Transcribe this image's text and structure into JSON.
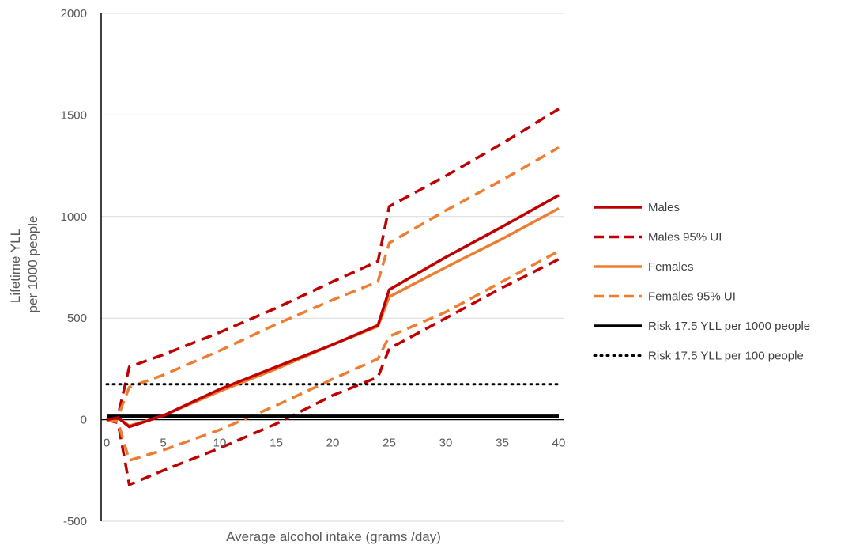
{
  "chart_data": {
    "type": "line",
    "xlabel": "Average alcohol intake (grams /day)",
    "ylabel_lines": [
      "Lifetime YLL",
      "per 1000 people"
    ],
    "xlim": [
      0,
      40
    ],
    "ylim": [
      -500,
      2000
    ],
    "x_ticks": [
      0,
      5,
      10,
      15,
      20,
      25,
      30,
      35,
      40
    ],
    "y_ticks": [
      -500,
      0,
      500,
      1000,
      1500,
      2000
    ],
    "grid": "horizontal",
    "legend_position": "right",
    "series": [
      {
        "name": "Males",
        "color": "#C00000",
        "dash": "solid",
        "x": [
          0,
          1,
          2,
          5,
          10,
          15,
          20,
          24,
          25,
          30,
          35,
          40
        ],
        "y": [
          0,
          10,
          -35,
          20,
          150,
          260,
          370,
          465,
          640,
          800,
          950,
          1105
        ]
      },
      {
        "name": "Males 95% UI",
        "color": "#C00000",
        "dash": "dashed",
        "x": [
          0,
          1,
          2,
          5,
          10,
          15,
          20,
          24,
          25,
          30,
          35,
          40
        ],
        "y": [
          0,
          20,
          260,
          320,
          430,
          550,
          680,
          780,
          1050,
          1200,
          1360,
          1530
        ]
      },
      {
        "name": "Males 95% UI",
        "color": "#C00000",
        "dash": "dashed",
        "x": [
          0,
          1,
          2,
          5,
          10,
          15,
          20,
          24,
          25,
          30,
          35,
          40
        ],
        "y": [
          0,
          -15,
          -320,
          -250,
          -140,
          -20,
          120,
          210,
          350,
          500,
          650,
          790
        ]
      },
      {
        "name": "Females",
        "color": "#ED7D31",
        "dash": "solid",
        "x": [
          0,
          1,
          2,
          5,
          10,
          15,
          20,
          24,
          25,
          30,
          35,
          40
        ],
        "y": [
          0,
          8,
          -30,
          20,
          140,
          250,
          370,
          460,
          605,
          750,
          890,
          1040
        ]
      },
      {
        "name": "Females 95% UI",
        "color": "#ED7D31",
        "dash": "dashed",
        "x": [
          0,
          1,
          2,
          5,
          10,
          15,
          20,
          24,
          25,
          30,
          35,
          40
        ],
        "y": [
          0,
          15,
          160,
          220,
          340,
          470,
          590,
          680,
          870,
          1030,
          1180,
          1340
        ]
      },
      {
        "name": "Females 95% UI",
        "color": "#ED7D31",
        "dash": "dashed",
        "x": [
          0,
          1,
          2,
          5,
          10,
          15,
          20,
          24,
          25,
          30,
          35,
          40
        ],
        "y": [
          0,
          -10,
          -200,
          -150,
          -50,
          70,
          200,
          300,
          410,
          530,
          680,
          830
        ]
      },
      {
        "name": "Risk 17.5 YLL per 1000 people",
        "color": "#000000",
        "dash": "solid",
        "x": [
          0,
          40
        ],
        "y": [
          17.5,
          17.5
        ]
      },
      {
        "name": "Risk 17.5 YLL per 100 people",
        "color": "#000000",
        "dash": "dotted",
        "x": [
          0,
          40
        ],
        "y": [
          175,
          175
        ]
      }
    ],
    "legend": [
      {
        "label": "Males",
        "color": "#C00000",
        "dash": "solid"
      },
      {
        "label": "Males 95% UI",
        "color": "#C00000",
        "dash": "dashed"
      },
      {
        "label": "Females",
        "color": "#ED7D31",
        "dash": "solid"
      },
      {
        "label": "Females 95% UI",
        "color": "#ED7D31",
        "dash": "dashed"
      },
      {
        "label": "Risk 17.5 YLL per 1000 people",
        "color": "#000000",
        "dash": "solid"
      },
      {
        "label": "Risk 17.5 YLL per 100 people",
        "color": "#000000",
        "dash": "dotted"
      }
    ]
  }
}
